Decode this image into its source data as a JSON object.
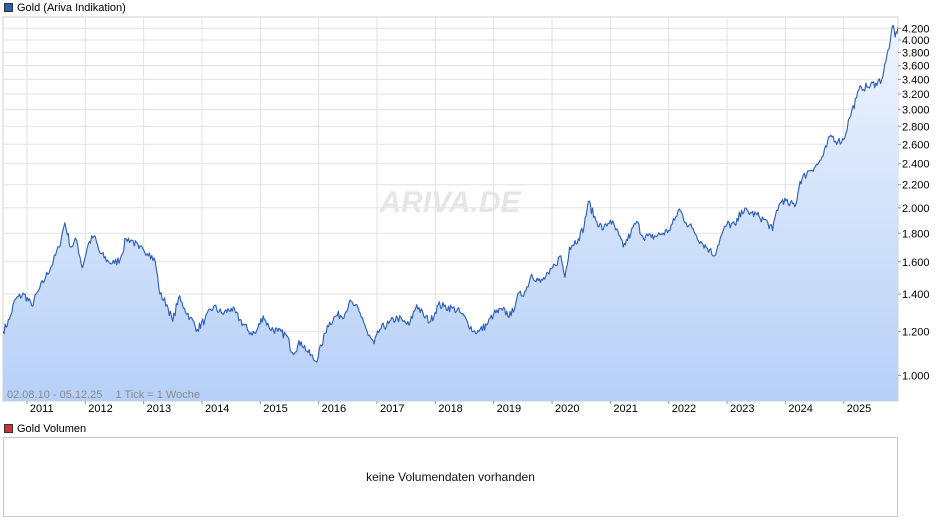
{
  "chart_data": {
    "type": "area",
    "series_name": "Gold (Ariva Indikation)",
    "series_color": "#2a5cb8",
    "fill_top_color": "#eef4fe",
    "fill_bottom_color": "#b7d0f7",
    "watermark": "ARIVA.DE",
    "period_label": "02.08.10 - 05.12.25",
    "tick_label": "1 Tick = 1 Woche",
    "y_scale": "log",
    "ylim": [
      900,
      4400
    ],
    "y_ticks": [
      {
        "value": 1000,
        "label": "1.000"
      },
      {
        "value": 1200,
        "label": "1.200"
      },
      {
        "value": 1400,
        "label": "1.400"
      },
      {
        "value": 1600,
        "label": "1.600"
      },
      {
        "value": 1800,
        "label": "1.800"
      },
      {
        "value": 2000,
        "label": "2.000"
      },
      {
        "value": 2200,
        "label": "2.200"
      },
      {
        "value": 2400,
        "label": "2.400"
      },
      {
        "value": 2600,
        "label": "2.600"
      },
      {
        "value": 2800,
        "label": "2.800"
      },
      {
        "value": 3000,
        "label": "3.000"
      },
      {
        "value": 3200,
        "label": "3.200"
      },
      {
        "value": 3400,
        "label": "3.400"
      },
      {
        "value": 3600,
        "label": "3.600"
      },
      {
        "value": 3800,
        "label": "3.800"
      },
      {
        "value": 4000,
        "label": "4.000"
      },
      {
        "value": 4200,
        "label": "4.200"
      }
    ],
    "xlim": [
      2010.59,
      2025.93
    ],
    "x_ticks": [
      {
        "value": 2011,
        "label": "2011"
      },
      {
        "value": 2012,
        "label": "2012"
      },
      {
        "value": 2013,
        "label": "2013"
      },
      {
        "value": 2014,
        "label": "2014"
      },
      {
        "value": 2015,
        "label": "2015"
      },
      {
        "value": 2016,
        "label": "2016"
      },
      {
        "value": 2017,
        "label": "2017"
      },
      {
        "value": 2018,
        "label": "2018"
      },
      {
        "value": 2019,
        "label": "2019"
      },
      {
        "value": 2020,
        "label": "2020"
      },
      {
        "value": 2021,
        "label": "2021"
      },
      {
        "value": 2022,
        "label": "2022"
      },
      {
        "value": 2023,
        "label": "2023"
      },
      {
        "value": 2024,
        "label": "2024"
      },
      {
        "value": 2025,
        "label": "2025"
      }
    ],
    "points": [
      [
        2010.59,
        1200
      ],
      [
        2010.7,
        1260
      ],
      [
        2010.8,
        1370
      ],
      [
        2010.95,
        1400
      ],
      [
        2011.08,
        1335
      ],
      [
        2011.2,
        1420
      ],
      [
        2011.32,
        1500
      ],
      [
        2011.45,
        1600
      ],
      [
        2011.55,
        1700
      ],
      [
        2011.65,
        1880
      ],
      [
        2011.75,
        1700
      ],
      [
        2011.85,
        1750
      ],
      [
        2011.95,
        1560
      ],
      [
        2012.05,
        1720
      ],
      [
        2012.15,
        1780
      ],
      [
        2012.25,
        1660
      ],
      [
        2012.4,
        1600
      ],
      [
        2012.5,
        1590
      ],
      [
        2012.6,
        1620
      ],
      [
        2012.7,
        1760
      ],
      [
        2012.8,
        1750
      ],
      [
        2012.92,
        1690
      ],
      [
        2013.0,
        1680
      ],
      [
        2013.1,
        1660
      ],
      [
        2013.2,
        1600
      ],
      [
        2013.28,
        1400
      ],
      [
        2013.4,
        1340
      ],
      [
        2013.5,
        1250
      ],
      [
        2013.6,
        1380
      ],
      [
        2013.7,
        1320
      ],
      [
        2013.8,
        1270
      ],
      [
        2013.92,
        1210
      ],
      [
        2014.05,
        1260
      ],
      [
        2014.2,
        1330
      ],
      [
        2014.35,
        1290
      ],
      [
        2014.5,
        1320
      ],
      [
        2014.65,
        1260
      ],
      [
        2014.8,
        1200
      ],
      [
        2014.92,
        1190
      ],
      [
        2015.05,
        1280
      ],
      [
        2015.15,
        1220
      ],
      [
        2015.3,
        1200
      ],
      [
        2015.45,
        1180
      ],
      [
        2015.55,
        1100
      ],
      [
        2015.7,
        1150
      ],
      [
        2015.82,
        1100
      ],
      [
        2015.95,
        1060
      ],
      [
        2016.05,
        1130
      ],
      [
        2016.15,
        1230
      ],
      [
        2016.3,
        1280
      ],
      [
        2016.45,
        1290
      ],
      [
        2016.52,
        1350
      ],
      [
        2016.62,
        1335
      ],
      [
        2016.75,
        1270
      ],
      [
        2016.85,
        1180
      ],
      [
        2016.95,
        1140
      ],
      [
        2017.05,
        1210
      ],
      [
        2017.2,
        1240
      ],
      [
        2017.35,
        1270
      ],
      [
        2017.45,
        1250
      ],
      [
        2017.55,
        1230
      ],
      [
        2017.68,
        1340
      ],
      [
        2017.8,
        1280
      ],
      [
        2017.92,
        1250
      ],
      [
        2018.05,
        1340
      ],
      [
        2018.15,
        1330
      ],
      [
        2018.3,
        1320
      ],
      [
        2018.42,
        1300
      ],
      [
        2018.55,
        1250
      ],
      [
        2018.65,
        1200
      ],
      [
        2018.75,
        1200
      ],
      [
        2018.9,
        1240
      ],
      [
        2019.0,
        1290
      ],
      [
        2019.15,
        1310
      ],
      [
        2019.3,
        1280
      ],
      [
        2019.4,
        1380
      ],
      [
        2019.55,
        1420
      ],
      [
        2019.65,
        1520
      ],
      [
        2019.8,
        1470
      ],
      [
        2019.95,
        1520
      ],
      [
        2020.05,
        1580
      ],
      [
        2020.15,
        1640
      ],
      [
        2020.22,
        1500
      ],
      [
        2020.3,
        1700
      ],
      [
        2020.45,
        1760
      ],
      [
        2020.55,
        1850
      ],
      [
        2020.62,
        2050
      ],
      [
        2020.75,
        1900
      ],
      [
        2020.88,
        1830
      ],
      [
        2021.0,
        1900
      ],
      [
        2021.15,
        1780
      ],
      [
        2021.22,
        1700
      ],
      [
        2021.35,
        1800
      ],
      [
        2021.45,
        1890
      ],
      [
        2021.55,
        1780
      ],
      [
        2021.7,
        1770
      ],
      [
        2021.85,
        1790
      ],
      [
        2022.0,
        1820
      ],
      [
        2022.1,
        1900
      ],
      [
        2022.18,
        1990
      ],
      [
        2022.3,
        1880
      ],
      [
        2022.4,
        1840
      ],
      [
        2022.55,
        1740
      ],
      [
        2022.7,
        1680
      ],
      [
        2022.78,
        1640
      ],
      [
        2022.88,
        1760
      ],
      [
        2023.0,
        1870
      ],
      [
        2023.15,
        1860
      ],
      [
        2023.25,
        1980
      ],
      [
        2023.4,
        1960
      ],
      [
        2023.55,
        1930
      ],
      [
        2023.7,
        1880
      ],
      [
        2023.78,
        1820
      ],
      [
        2023.85,
        1980
      ],
      [
        2023.95,
        2070
      ],
      [
        2024.05,
        2030
      ],
      [
        2024.18,
        2030
      ],
      [
        2024.25,
        2230
      ],
      [
        2024.4,
        2330
      ],
      [
        2024.55,
        2390
      ],
      [
        2024.65,
        2480
      ],
      [
        2024.78,
        2700
      ],
      [
        2024.9,
        2630
      ],
      [
        2025.0,
        2650
      ],
      [
        2025.1,
        2900
      ],
      [
        2025.22,
        3150
      ],
      [
        2025.3,
        3300
      ],
      [
        2025.4,
        3290
      ],
      [
        2025.55,
        3350
      ],
      [
        2025.65,
        3400
      ],
      [
        2025.72,
        3650
      ],
      [
        2025.8,
        4000
      ],
      [
        2025.85,
        4250
      ],
      [
        2025.88,
        4050
      ],
      [
        2025.93,
        4220
      ]
    ]
  },
  "volume": {
    "legend_label": "Gold Volumen",
    "legend_color": "#cc3333",
    "message": "keine Volumendaten vorhanden"
  }
}
